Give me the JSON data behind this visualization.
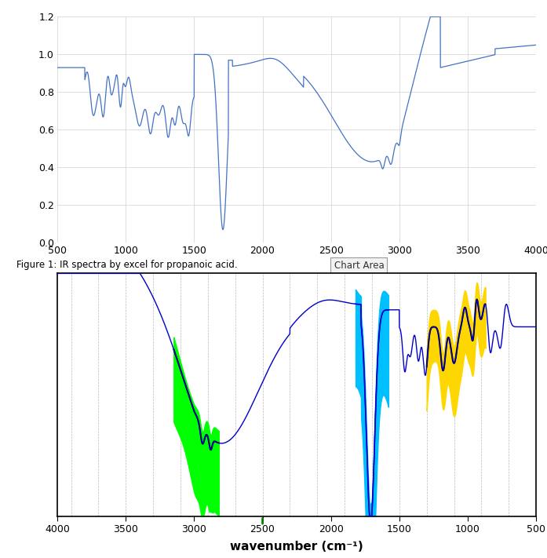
{
  "chart1_line_color": "#4472C4",
  "chart2_line_color": "#0000CC",
  "chart_area_label": "Chart Area",
  "figure_caption": "Figure 1: IR spectra by excel for propanoic acid.",
  "chart2_xlabel": "wavenumber (cm⁻¹)",
  "bg_color": "#FFFFFF",
  "green_color": "#00FF00",
  "cyan_color": "#00BFFF",
  "yellow_color": "#FFD700",
  "black_color": "#000000",
  "grid_color": "#D0D0D0",
  "dashed_grid_color": "#BBBBBB"
}
